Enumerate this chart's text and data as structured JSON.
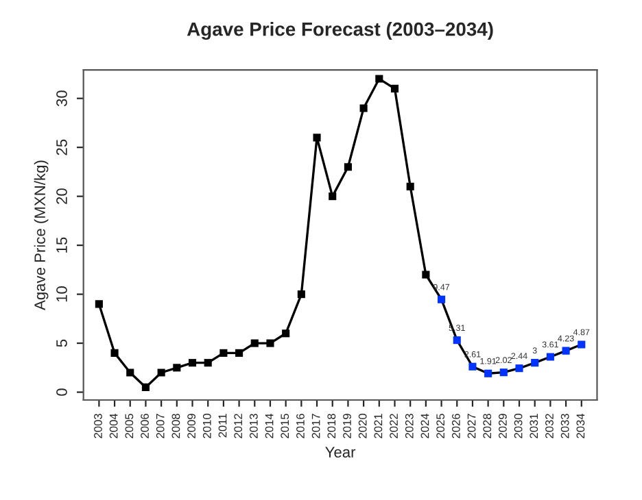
{
  "chart_data": {
    "type": "line",
    "title": "Agave Price Forecast (2003–2034)",
    "xlabel": "Year",
    "ylabel": "Agave Price (MXN/kg)",
    "categories": [
      "2003",
      "2004",
      "2005",
      "2006",
      "2007",
      "2008",
      "2009",
      "2010",
      "2011",
      "2012",
      "2013",
      "2014",
      "2015",
      "2016",
      "2017",
      "2018",
      "2019",
      "2020",
      "2021",
      "2022",
      "2023",
      "2024",
      "2025",
      "2026",
      "2027",
      "2028",
      "2029",
      "2030",
      "2031",
      "2032",
      "2033",
      "2034"
    ],
    "series": [
      {
        "color": "#000000",
        "values": [
          9,
          4,
          2,
          0.5,
          2,
          2.5,
          3,
          3,
          4,
          4,
          5,
          5,
          6,
          10,
          26,
          20,
          23,
          29,
          32,
          31,
          21,
          12,
          9.47,
          5.31,
          2.61,
          1.91,
          2.02,
          2.44,
          3,
          3.61,
          4.23,
          4.87
        ],
        "colors": [
          "#000000",
          "#000000",
          "#000000",
          "#000000",
          "#000000",
          "#000000",
          "#000000",
          "#000000",
          "#000000",
          "#000000",
          "#000000",
          "#000000",
          "#000000",
          "#000000",
          "#000000",
          "#000000",
          "#000000",
          "#000000",
          "#000000",
          "#000000",
          "#000000",
          "#000000",
          "#0033ff",
          "#0033ff",
          "#0033ff",
          "#0033ff",
          "#0033ff",
          "#0033ff",
          "#0033ff",
          "#0033ff",
          "#0033ff",
          "#0033ff"
        ],
        "value_labels": [
          null,
          null,
          null,
          null,
          null,
          null,
          null,
          null,
          null,
          null,
          null,
          null,
          null,
          null,
          null,
          null,
          null,
          null,
          null,
          null,
          null,
          null,
          "9.47",
          "5.31",
          "2.61",
          "1.91",
          "2.02",
          "2.44",
          "3",
          "3.61",
          "4.23",
          "4.87"
        ]
      }
    ],
    "ylim": [
      -0.8,
      32.9
    ],
    "yticks": [
      0,
      5,
      10,
      15,
      20,
      25,
      30
    ],
    "marker": "square",
    "line_style": "solid",
    "grid": false,
    "legend": false
  }
}
